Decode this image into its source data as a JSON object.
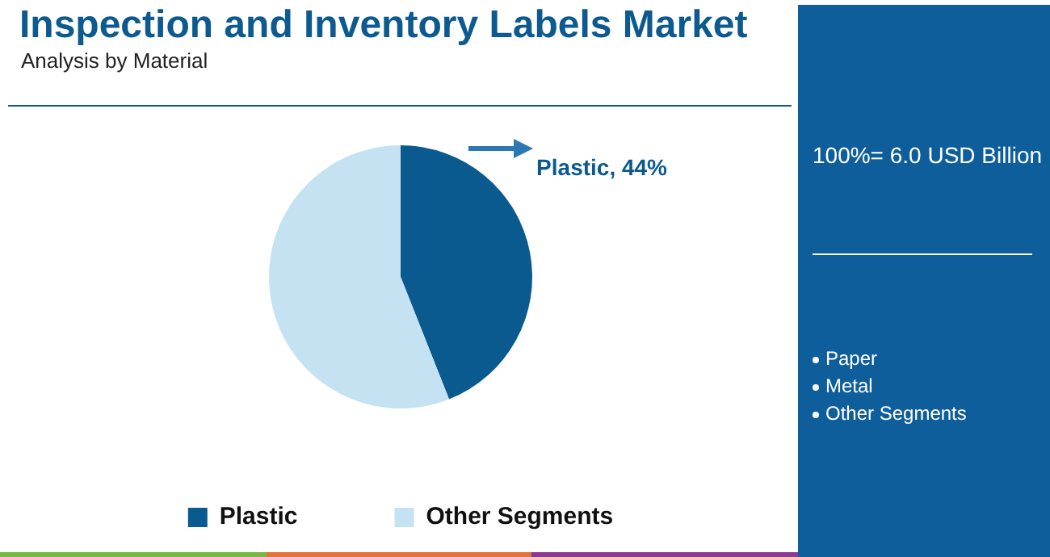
{
  "chart_data": {
    "type": "pie",
    "title": "Inspection and Inventory Labels Market",
    "subtitle": "Analysis by Material",
    "categories": [
      "Plastic",
      "Other Segments"
    ],
    "values": [
      44,
      56
    ],
    "colors": [
      "#0a5a8f",
      "#c5e2f2"
    ],
    "value_labels": [
      "Plastic, 44%",
      null
    ],
    "legend": "bottom",
    "annotations": [
      "100%= 6.0 USD Billion",
      "Paper",
      "Metal",
      "Other Segments"
    ]
  }
}
